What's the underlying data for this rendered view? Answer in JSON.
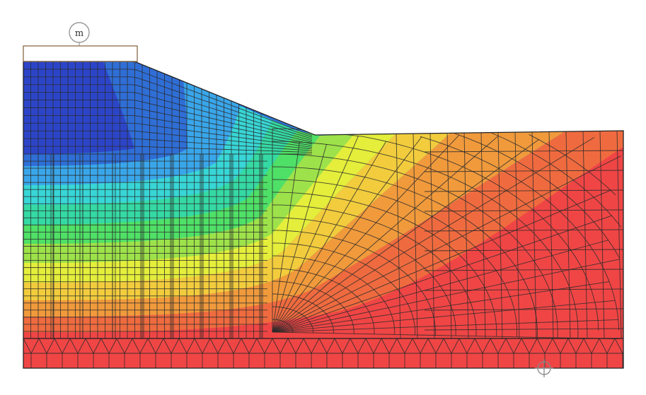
{
  "load_marker": {
    "label": "m",
    "icon": "surcharge-load-icon"
  },
  "anchor_marker": {
    "icon": "fixed-support-icon"
  },
  "colors": {
    "background": "#ffffff",
    "mesh_line": "#2a2a2a",
    "boundary": "#222222",
    "load_outline": "#8a6b45",
    "marker": "#888888",
    "contour_palette": [
      "#2c45c8",
      "#2f6ed6",
      "#3aa6ea",
      "#38d6d6",
      "#35d9a3",
      "#4fe067",
      "#9de24a",
      "#e4ee3b",
      "#f2cc3d",
      "#f09a3c",
      "#ef6b3f",
      "#f04545",
      "#e8403e"
    ]
  }
}
